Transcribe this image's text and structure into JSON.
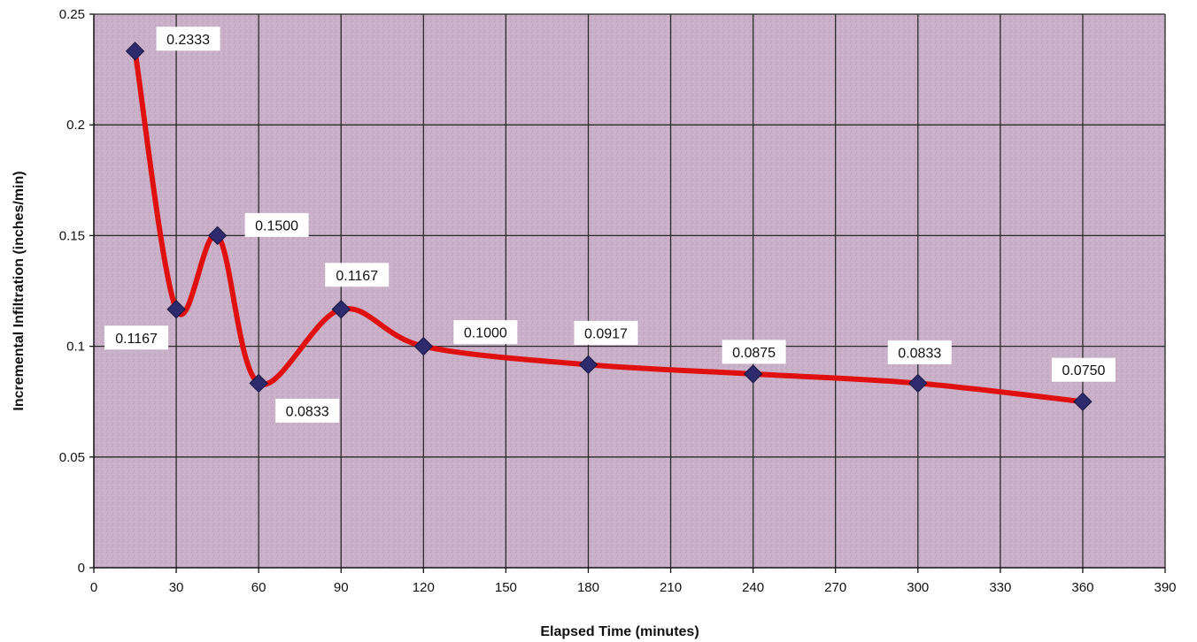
{
  "chart_data": {
    "type": "line",
    "title": "",
    "xlabel": "Elapsed Time (minutes)",
    "ylabel": "Incremental Infiltration (inches/min)",
    "xlim": [
      0,
      390
    ],
    "ylim": [
      0,
      0.25
    ],
    "x_ticks": [
      0,
      30,
      60,
      90,
      120,
      150,
      180,
      210,
      240,
      270,
      300,
      330,
      360,
      390
    ],
    "y_ticks": [
      0,
      0.05,
      0.1,
      0.15,
      0.2,
      0.25
    ],
    "x_tick_labels": [
      "0",
      "30",
      "60",
      "90",
      "120",
      "150",
      "180",
      "210",
      "240",
      "270",
      "300",
      "330",
      "360",
      "390"
    ],
    "y_tick_labels": [
      "0",
      "0.05",
      "0.1",
      "0.15",
      "0.2",
      "0.25"
    ],
    "grid": true,
    "smoothed": true,
    "legend": "none",
    "colors": {
      "plot_background": "#c9b0c8",
      "gridline": "#2a2a2a",
      "line": "#e01010",
      "marker": "#2e2a6e",
      "label_box": "#ffffff"
    },
    "series": [
      {
        "x": [
          15,
          30,
          45,
          60,
          90,
          120,
          180,
          240,
          300,
          360
        ],
        "y": [
          0.2333,
          0.1167,
          0.15,
          0.0833,
          0.1167,
          0.1,
          0.0917,
          0.0875,
          0.0833,
          0.075
        ],
        "labels": [
          "0.2333",
          "0.1167",
          "0.1500",
          "0.0833",
          "0.1167",
          "0.1000",
          "0.0917",
          "0.0875",
          "0.0833",
          "0.0750"
        ],
        "marker": "diamond"
      }
    ]
  }
}
